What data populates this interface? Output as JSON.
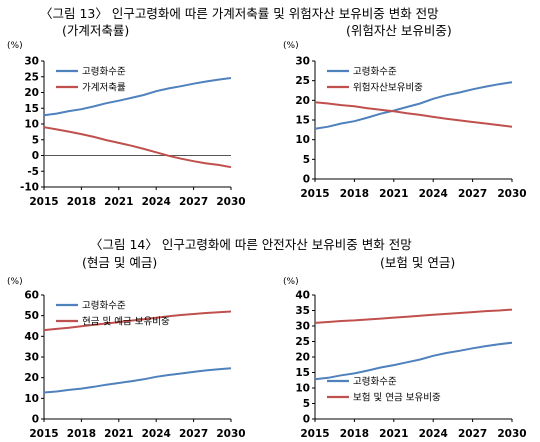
{
  "figure13": {
    "title": "〈그림 13〉 인구고령화에 따른 가계저축률 및 위험자산 보유비중 변화 전망",
    "subtitle_left": "(가계저축률)",
    "subtitle_right": "(위험자산 보유비중)"
  },
  "figure14": {
    "title": "〈그림 14〉 인구고령화에 따른 안전자산 보유비중 변화 전망",
    "subtitle_left": "(현금 및 예금)",
    "subtitle_right": "(보험 및 연금)"
  },
  "colors": {
    "aging": "#4F81BD",
    "other": "#C0504D",
    "zero_line": "#555555"
  },
  "chart_data": [
    {
      "type": "line",
      "id": "chart1",
      "ylabel": "(%)",
      "x": [
        2015,
        2018,
        2021,
        2024,
        2027,
        2030
      ],
      "ylim": [
        -10,
        30
      ],
      "yticks": [
        -10,
        -5,
        0,
        5,
        10,
        15,
        20,
        25,
        30
      ],
      "legend": "top-left",
      "series": [
        {
          "name": "고령화수준",
          "color": "#4F81BD",
          "x": [
            2015,
            2016,
            2017,
            2018,
            2019,
            2020,
            2021,
            2022,
            2023,
            2024,
            2025,
            2026,
            2027,
            2028,
            2029,
            2030
          ],
          "values": [
            12.8,
            13.3,
            14.1,
            14.7,
            15.6,
            16.6,
            17.4,
            18.3,
            19.2,
            20.4,
            21.3,
            22.0,
            22.8,
            23.5,
            24.1,
            24.6
          ]
        },
        {
          "name": "가계저축률",
          "color": "#C0504D",
          "x": [
            2015,
            2016,
            2017,
            2018,
            2019,
            2020,
            2021,
            2022,
            2023,
            2024,
            2025,
            2026,
            2027,
            2028,
            2029,
            2030
          ],
          "values": [
            9.0,
            8.3,
            7.6,
            6.8,
            5.9,
            4.9,
            4.0,
            3.1,
            2.1,
            1.0,
            -0.1,
            -1.0,
            -1.8,
            -2.5,
            -3.0,
            -3.7
          ]
        }
      ]
    },
    {
      "type": "line",
      "id": "chart2",
      "ylabel": "(%)",
      "x": [
        2015,
        2018,
        2021,
        2024,
        2027,
        2030
      ],
      "ylim": [
        0,
        30
      ],
      "yticks": [
        0,
        5,
        10,
        15,
        20,
        25,
        30
      ],
      "legend": "top-left",
      "series": [
        {
          "name": "고령화수준",
          "color": "#4F81BD",
          "x": [
            2015,
            2016,
            2017,
            2018,
            2019,
            2020,
            2021,
            2022,
            2023,
            2024,
            2025,
            2026,
            2027,
            2028,
            2029,
            2030
          ],
          "values": [
            12.8,
            13.3,
            14.1,
            14.7,
            15.6,
            16.6,
            17.4,
            18.3,
            19.2,
            20.4,
            21.3,
            22.0,
            22.8,
            23.5,
            24.1,
            24.6
          ]
        },
        {
          "name": "위험자산보유비중",
          "color": "#C0504D",
          "x": [
            2015,
            2016,
            2017,
            2018,
            2019,
            2020,
            2021,
            2022,
            2023,
            2024,
            2025,
            2026,
            2027,
            2028,
            2029,
            2030
          ],
          "values": [
            19.5,
            19.2,
            18.8,
            18.5,
            18.0,
            17.6,
            17.2,
            16.7,
            16.3,
            15.8,
            15.3,
            14.9,
            14.5,
            14.1,
            13.7,
            13.3
          ]
        }
      ]
    },
    {
      "type": "line",
      "id": "chart3",
      "ylabel": "(%)",
      "x": [
        2015,
        2018,
        2021,
        2024,
        2027,
        2030
      ],
      "ylim": [
        0,
        60
      ],
      "yticks": [
        0,
        10,
        20,
        30,
        40,
        50,
        60
      ],
      "legend": "top-left",
      "series": [
        {
          "name": "고령화수준",
          "color": "#4F81BD",
          "x": [
            2015,
            2016,
            2017,
            2018,
            2019,
            2020,
            2021,
            2022,
            2023,
            2024,
            2025,
            2026,
            2027,
            2028,
            2029,
            2030
          ],
          "values": [
            12.8,
            13.3,
            14.1,
            14.7,
            15.6,
            16.6,
            17.4,
            18.3,
            19.2,
            20.4,
            21.3,
            22.0,
            22.8,
            23.5,
            24.1,
            24.6
          ]
        },
        {
          "name": "현금 및 예금 보유비중",
          "color": "#C0504D",
          "x": [
            2015,
            2016,
            2017,
            2018,
            2019,
            2020,
            2021,
            2022,
            2023,
            2024,
            2025,
            2026,
            2027,
            2028,
            2029,
            2030
          ],
          "values": [
            43.0,
            43.6,
            44.2,
            44.9,
            45.6,
            46.2,
            46.9,
            47.6,
            48.3,
            49.0,
            49.7,
            50.3,
            50.8,
            51.3,
            51.7,
            52.0
          ]
        }
      ]
    },
    {
      "type": "line",
      "id": "chart4",
      "ylabel": "(%)",
      "x": [
        2015,
        2018,
        2021,
        2024,
        2027,
        2030
      ],
      "ylim": [
        0,
        40
      ],
      "yticks": [
        0,
        5,
        10,
        15,
        20,
        25,
        30,
        35,
        40
      ],
      "legend": "bottom-left",
      "series": [
        {
          "name": "고령화수준",
          "color": "#4F81BD",
          "x": [
            2015,
            2016,
            2017,
            2018,
            2019,
            2020,
            2021,
            2022,
            2023,
            2024,
            2025,
            2026,
            2027,
            2028,
            2029,
            2030
          ],
          "values": [
            12.8,
            13.3,
            14.1,
            14.7,
            15.6,
            16.6,
            17.4,
            18.3,
            19.2,
            20.4,
            21.3,
            22.0,
            22.8,
            23.5,
            24.1,
            24.6
          ]
        },
        {
          "name": "보험 및 연금 보유비중",
          "color": "#C0504D",
          "x": [
            2015,
            2016,
            2017,
            2018,
            2019,
            2020,
            2021,
            2022,
            2023,
            2024,
            2025,
            2026,
            2027,
            2028,
            2029,
            2030
          ],
          "values": [
            31.0,
            31.3,
            31.6,
            31.8,
            32.1,
            32.4,
            32.7,
            33.0,
            33.3,
            33.6,
            33.9,
            34.2,
            34.5,
            34.8,
            35.0,
            35.3
          ]
        }
      ]
    }
  ]
}
